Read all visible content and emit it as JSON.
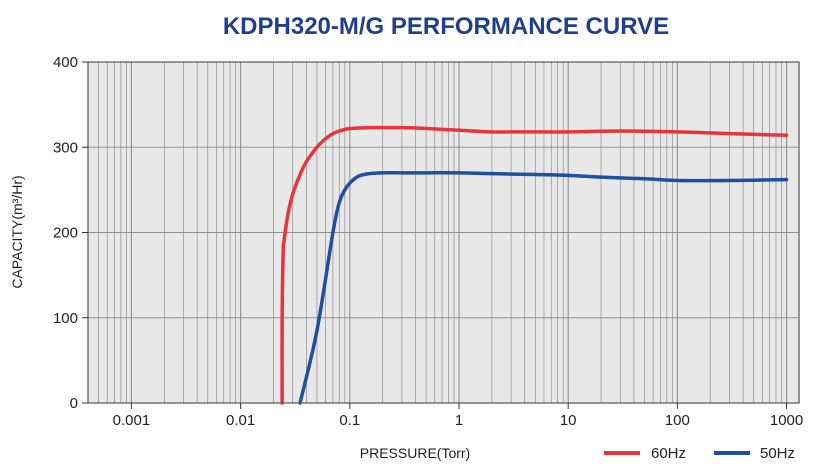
{
  "chart_data": {
    "type": "line",
    "title": "KDPH320-M/G  PERFORMANCE CURVE",
    "xlabel": "PRESSURE(Torr)",
    "ylabel": "CAPACITY(m³/Hr)",
    "x_scale": "log",
    "xlim": [
      0.0004,
      1300
    ],
    "ylim": [
      0,
      400
    ],
    "x_ticks": [
      0.001,
      0.01,
      0.1,
      1,
      10,
      100,
      1000
    ],
    "x_tick_labels": [
      "0.001",
      "0.01",
      "0.1",
      "1",
      "10",
      "100",
      "1000"
    ],
    "y_ticks": [
      0,
      100,
      200,
      300,
      400
    ],
    "y_tick_labels": [
      "0",
      "100",
      "200",
      "300",
      "400"
    ],
    "grid": true,
    "legend_position": "bottom-right",
    "colors": {
      "title": "#1f3f8e",
      "plot_bg": "#e8e8e8",
      "grid": "#8f8f8f"
    },
    "series": [
      {
        "name": "60Hz",
        "color": "#e8343c",
        "x": [
          0.024,
          0.024,
          0.0245,
          0.025,
          0.027,
          0.03,
          0.035,
          0.04,
          0.05,
          0.06,
          0.07,
          0.08,
          0.1,
          0.15,
          0.2,
          0.3,
          0.5,
          1,
          2,
          3,
          5,
          10,
          30,
          100,
          300,
          1000
        ],
        "y": [
          0,
          100,
          175,
          190,
          220,
          245,
          268,
          283,
          300,
          310,
          316,
          319,
          322,
          323,
          323,
          323,
          322,
          320,
          318,
          318,
          318,
          318,
          319,
          318,
          316,
          314
        ]
      },
      {
        "name": "50Hz",
        "color": "#1f4fa0",
        "x": [
          0.035,
          0.05,
          0.07,
          0.08,
          0.09,
          0.1,
          0.12,
          0.15,
          0.2,
          0.3,
          0.5,
          1,
          2,
          5,
          10,
          20,
          50,
          100,
          300,
          1000
        ],
        "y": [
          0,
          85,
          200,
          235,
          250,
          258,
          266,
          269,
          270,
          270,
          270,
          270,
          269,
          268,
          267,
          265,
          263,
          261,
          261,
          262
        ]
      }
    ]
  }
}
